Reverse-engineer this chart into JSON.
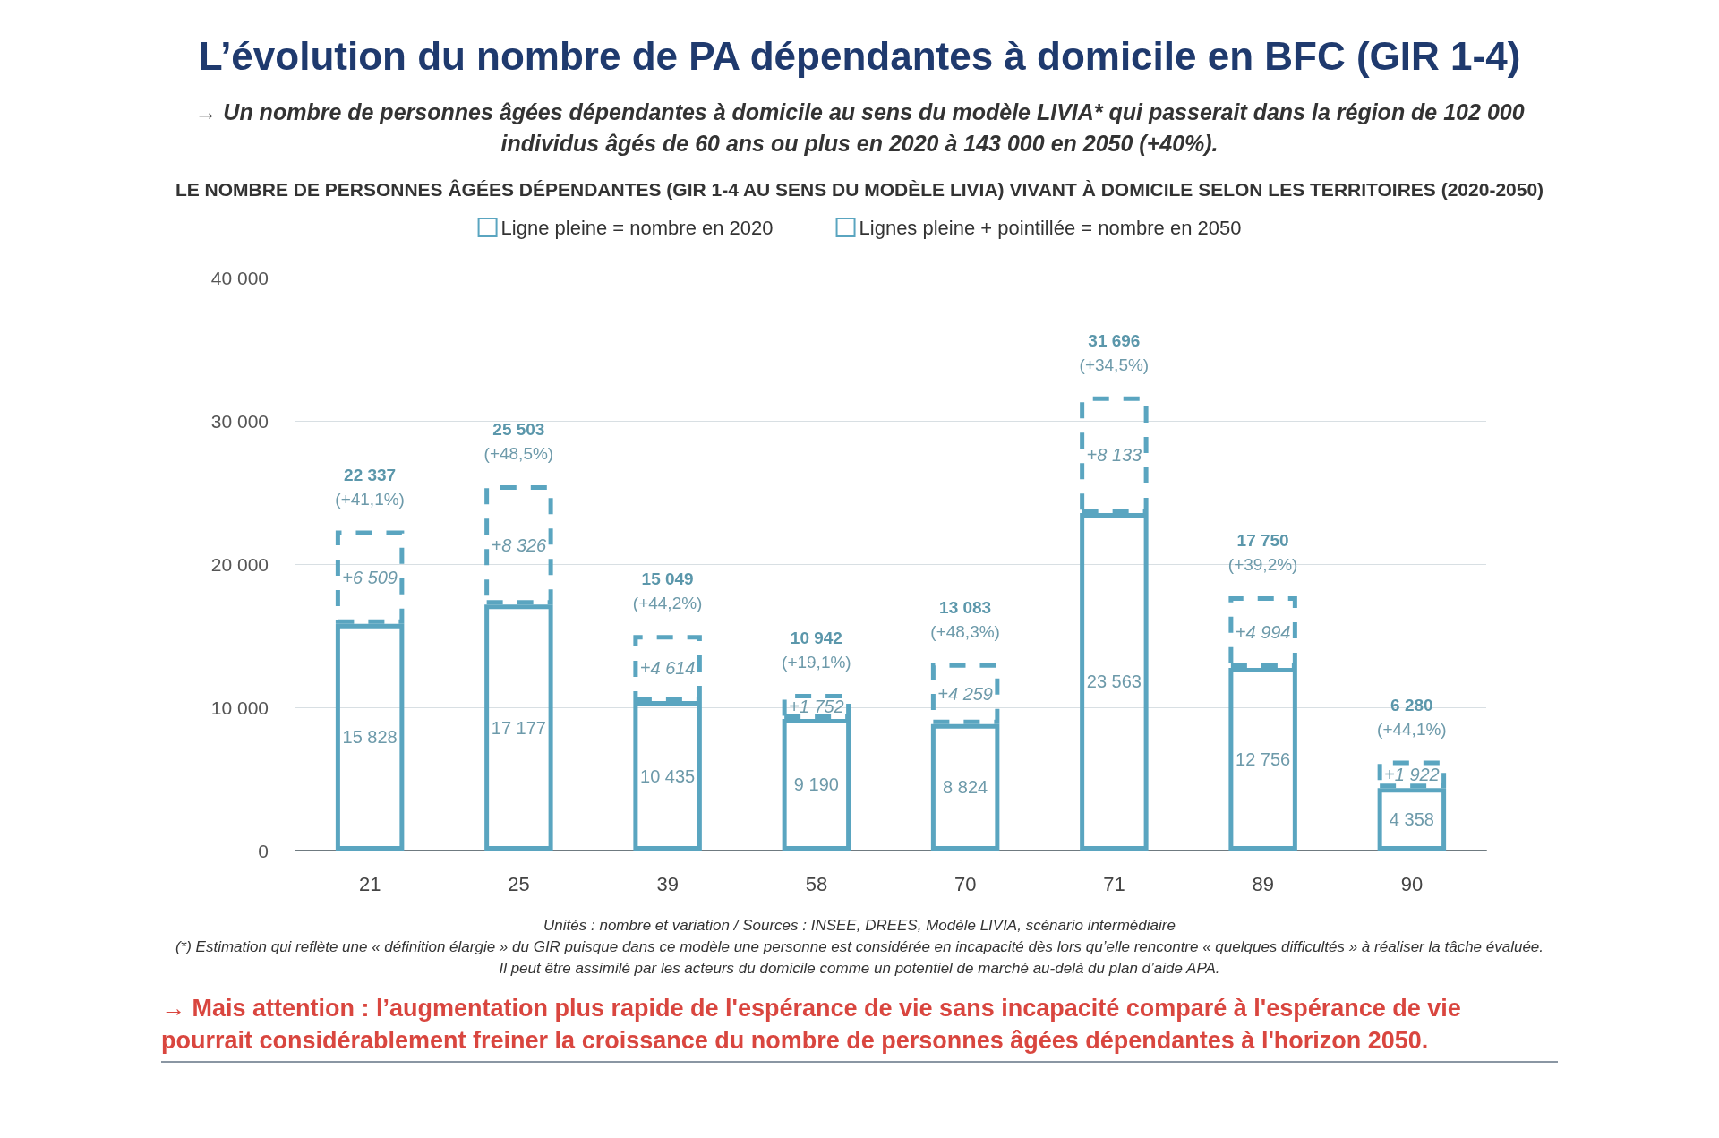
{
  "chart_data": {
    "type": "bar",
    "title": "L’évolution du nombre de PA dépendantes à domicile en BFC (GIR 1-4)",
    "subtitle": "→ Un nombre de personnes âgées dépendantes à domicile au sens du modèle LIVIA* qui passerait dans la région de 102 000 individus âgés de 60 ans ou plus en 2020 à 143 000 en 2050 (+40%).",
    "categories": [
      "21",
      "25",
      "39",
      "58",
      "70",
      "71",
      "89",
      "90"
    ],
    "stacked": true,
    "series": [
      {
        "name": "Ligne pleine = nombre en 2020",
        "color": "#5aa5c0",
        "line_style": "solid",
        "values": [
          15828,
          17177,
          10435,
          9190,
          8824,
          23563,
          12756,
          4358
        ],
        "value_labels": [
          "15 828",
          "17 177",
          "10 435",
          "9 190",
          "8 824",
          "23 563",
          "12 756",
          "4 358"
        ]
      },
      {
        "name": "Lignes pleine + pointillée = nombre en 2050",
        "color": "#5aa5c0",
        "line_style": "dashed",
        "values": [
          6509,
          8326,
          4614,
          1752,
          4259,
          8133,
          4994,
          1922
        ],
        "value_labels": [
          "+6 509",
          "+8 326",
          "+4 614",
          "+1 752",
          "+4 259",
          "+8 133",
          "+4 994",
          "+1 922"
        ]
      }
    ],
    "totals": [
      "22 337\n(+41,1%)",
      "25 503\n(+48,5%)",
      "15 049\n(+44,2%)",
      "10 942\n(+19,1%)",
      "13 083\n(+48,3%)",
      "31 696\n(+34,5%)",
      "17 750\n(+39,2%)",
      "6 280\n(+44,1%)"
    ],
    "ylim": [
      0,
      40000
    ],
    "yticks": [
      0,
      {
        "value": 10000,
        "label": "10 000"
      },
      {
        "value": 20000,
        "label": "20 000"
      },
      {
        "value": 30000,
        "label": "30 000"
      },
      {
        "value": 40000,
        "label": "40 000"
      }
    ],
    "grid": "y",
    "legend": "top",
    "annotations": [
      "LE NOMBRE DE PERSONNES ÂGÉES DÉPENDANTES (GIR 1-4 AU SENS DU MODÈLE LIVIA) VIVANT À DOMICILE SELON LES TERRITOIRES (2020-2050)",
      "Unités : nombre et variation / Sources : INSEE, DREES, Modèle LIVIA, scénario intermédiaire",
      "(*) Estimation qui reflète une « définition élargie » du GIR puisque dans ce modèle une personne est considérée en incapacité dès lors qu’elle rencontre « quelques difficultés » à réaliser la tâche évaluée.",
      "Il peut être assimilé par les acteurs du domicile comme un potentiel de marché au-delà du plan d’aide APA.",
      "→ Mais attention : l’augmentation plus rapide de l'espérance de vie sans incapacité comparé à l'espérance de vie pourrait considérablement freiner la croissance du nombre de personnes âgées dépendantes à l'horizon 2050."
    ]
  }
}
